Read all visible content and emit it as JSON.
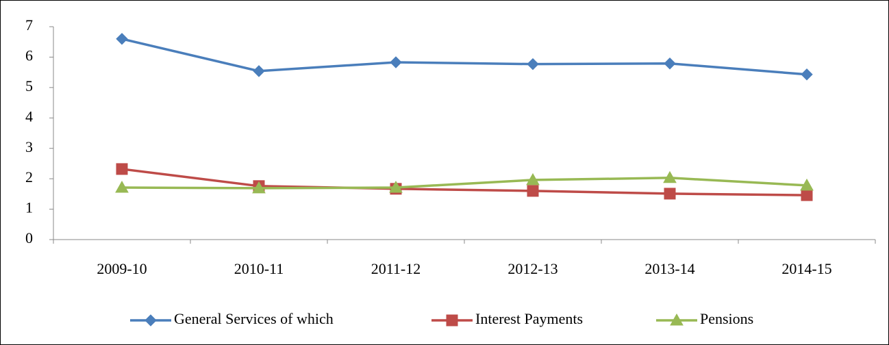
{
  "chart_data": {
    "type": "line",
    "categories": [
      "2009-10",
      "2010-11",
      "2011-12",
      "2012-13",
      "2013-14",
      "2014-15"
    ],
    "series": [
      {
        "name": "General Services of which",
        "color": "#4a7ebb",
        "marker": "diamond",
        "values": [
          6.6,
          5.54,
          5.83,
          5.77,
          5.79,
          5.43
        ]
      },
      {
        "name": "Interest Payments",
        "color": "#be4b48",
        "marker": "square",
        "values": [
          2.32,
          1.76,
          1.67,
          1.6,
          1.51,
          1.46
        ]
      },
      {
        "name": "Pensions",
        "color": "#98b954",
        "marker": "triangle",
        "values": [
          1.71,
          1.69,
          1.71,
          1.96,
          2.03,
          1.78
        ]
      }
    ],
    "ylim": [
      0,
      7
    ],
    "yticks": [
      0,
      1,
      2,
      3,
      4,
      5,
      6,
      7
    ],
    "grid": false,
    "legend": "bottom"
  }
}
